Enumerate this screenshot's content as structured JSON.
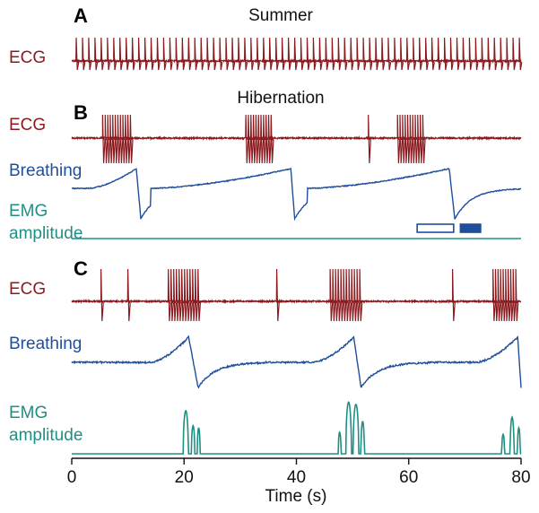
{
  "colors": {
    "ecg": "#8b1a1f",
    "breathing": "#1f4e9a",
    "emg": "#1f8f83",
    "axis": "#111111"
  },
  "x_axis": {
    "label": "Time (s)",
    "ticks": [
      "0",
      "20",
      "40",
      "60",
      "80"
    ]
  },
  "chart_data": [
    {
      "type": "line",
      "panel": "A",
      "title": "Summer",
      "xlim": [
        0,
        80
      ],
      "series": [
        {
          "name": "ECG",
          "kind": "ecg",
          "beats_per_second": 0.9,
          "start": 0.8,
          "end": 80
        }
      ]
    },
    {
      "type": "line",
      "panel": "B",
      "title": "Hibernation",
      "xlim": [
        0,
        80
      ],
      "series": [
        {
          "name": "ECG",
          "kind": "ecg",
          "bursts": [
            {
              "start": 5.5,
              "beats": 12,
              "spacing": 0.45
            },
            {
              "start": 31.0,
              "beats": 11,
              "spacing": 0.45
            },
            {
              "start": 52.8,
              "beats": 1,
              "spacing": 0.45
            },
            {
              "start": 58.0,
              "beats": 11,
              "spacing": 0.45
            }
          ]
        },
        {
          "name": "Breathing",
          "kind": "breathing",
          "breaths": [
            {
              "rise_start": 3.0,
              "peak": 11.5,
              "trough": 12.3
            },
            {
              "rise_start": 14.0,
              "peak": 39.0,
              "trough": 39.7
            },
            {
              "rise_start": 42.0,
              "peak": 67.2,
              "trough": 68.2
            }
          ]
        },
        {
          "name": "EMG amplitude",
          "kind": "emg",
          "bursts": []
        }
      ],
      "markers": [
        {
          "kind": "open",
          "start": 61.5,
          "end": 68.0
        },
        {
          "kind": "filled",
          "start": 69.2,
          "end": 72.8
        }
      ]
    },
    {
      "type": "line",
      "panel": "C",
      "title": "",
      "xlim": [
        0,
        80
      ],
      "series": [
        {
          "name": "ECG",
          "kind": "ecg",
          "bursts": [
            {
              "start": 5.2,
              "beats": 1,
              "spacing": 0.5
            },
            {
              "start": 10.0,
              "beats": 1,
              "spacing": 0.5
            },
            {
              "start": 17.2,
              "beats": 12,
              "spacing": 0.48
            },
            {
              "start": 36.5,
              "beats": 1,
              "spacing": 0.5
            },
            {
              "start": 46.0,
              "beats": 12,
              "spacing": 0.48
            },
            {
              "start": 67.8,
              "beats": 1,
              "spacing": 0.5
            },
            {
              "start": 75.0,
              "beats": 10,
              "spacing": 0.45
            }
          ]
        },
        {
          "name": "Breathing",
          "kind": "breathing",
          "breaths": [
            {
              "rise_start": 14.0,
              "peak": 20.8,
              "trough": 22.5
            },
            {
              "rise_start": 43.0,
              "peak": 50.2,
              "trough": 51.5
            },
            {
              "rise_start": 72.0,
              "peak": 79.4,
              "trough": 80.0
            }
          ]
        },
        {
          "name": "EMG amplitude",
          "kind": "emg",
          "bursts": [
            {
              "center": 20.3,
              "height": 1.0,
              "width": 0.9
            },
            {
              "center": 21.6,
              "height": 0.65,
              "width": 0.6
            },
            {
              "center": 22.6,
              "height": 0.6,
              "width": 0.5
            },
            {
              "center": 47.7,
              "height": 0.5,
              "width": 0.5
            },
            {
              "center": 49.3,
              "height": 1.2,
              "width": 1.0
            },
            {
              "center": 50.6,
              "height": 1.15,
              "width": 1.0
            },
            {
              "center": 51.8,
              "height": 0.75,
              "width": 0.6
            },
            {
              "center": 76.8,
              "height": 0.45,
              "width": 0.5
            },
            {
              "center": 78.4,
              "height": 0.85,
              "width": 0.7
            },
            {
              "center": 79.6,
              "height": 0.6,
              "width": 0.5
            }
          ]
        }
      ]
    }
  ]
}
